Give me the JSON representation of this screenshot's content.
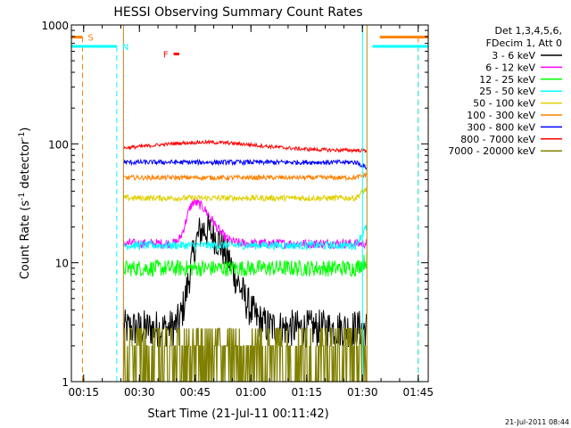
{
  "chart_data": {
    "type": "line",
    "title": "HESSI Observing Summary Count Rates",
    "xlabel": "Start Time (21-Jul-11 00:11:42)",
    "ylabel_main": "Count Rate (s",
    "ylabel_sup1": "-1",
    "ylabel_mid": " detector",
    "ylabel_sup2": "-1",
    "ylabel_end": ")",
    "x_unit": "minutes after 00:11:42",
    "xlim": [
      0,
      96
    ],
    "ylim": [
      1,
      1000
    ],
    "y_scale": "log",
    "x_ticks": [
      {
        "label": "00:15",
        "value": 3.3
      },
      {
        "label": "00:30",
        "value": 18.3
      },
      {
        "label": "00:45",
        "value": 33.3
      },
      {
        "label": "01:00",
        "value": 48.3
      },
      {
        "label": "01:15",
        "value": 63.3
      },
      {
        "label": "01:30",
        "value": 78.3
      },
      {
        "label": "01:45",
        "value": 93.3
      }
    ],
    "y_ticks": [
      {
        "label": "1",
        "value": 1
      },
      {
        "label": "10",
        "value": 10
      },
      {
        "label": "100",
        "value": 100
      },
      {
        "label": "1000",
        "value": 1000
      }
    ],
    "legend": {
      "position": "top-right",
      "header": [
        "Det 1,3,4,5,6,",
        "FDecim 1, Att 0"
      ],
      "entries": [
        {
          "label": "3 - 6 keV",
          "color": "#000000"
        },
        {
          "label": "6 - 12 keV",
          "color": "#ff00ff"
        },
        {
          "label": "12 - 25 keV",
          "color": "#00ff00"
        },
        {
          "label": "25 - 50 keV",
          "color": "#00ffff"
        },
        {
          "label": "50 - 100 keV",
          "color": "#e0d000"
        },
        {
          "label": "100 - 300 keV",
          "color": "#ff8000"
        },
        {
          "label": "300 - 800 keV",
          "color": "#0000ff"
        },
        {
          "label": "800 - 7000 keV",
          "color": "#ff0000"
        },
        {
          "label": "7000 - 20000 keV",
          "color": "#808000"
        }
      ]
    },
    "series": [
      {
        "name": "3 - 6 keV",
        "color": "#000000",
        "kind": "flare",
        "base": 2.8,
        "peak": 19,
        "peak_t": 35.5,
        "width": 3.5,
        "noise": 0.16
      },
      {
        "name": "6 - 12 keV",
        "color": "#ff00ff",
        "kind": "flare",
        "base": 14.5,
        "peak": 32,
        "peak_t": 33.0,
        "width": 2.5,
        "noise": 0.04
      },
      {
        "name": "12 - 25 keV",
        "color": "#00ff00",
        "kind": "flat",
        "base": 9.0,
        "noise": 0.07,
        "end_level": 10.5
      },
      {
        "name": "25 - 50 keV",
        "color": "#00ffff",
        "kind": "flat",
        "base": 14.0,
        "noise": 0.035,
        "end_level": 20
      },
      {
        "name": "50 - 100 keV",
        "color": "#e0d000",
        "kind": "flat",
        "base": 35.0,
        "noise": 0.025,
        "end_level": 42
      },
      {
        "name": "100 - 300 keV",
        "color": "#ff8000",
        "kind": "flat",
        "base": 52.0,
        "noise": 0.02,
        "end_level": 55
      },
      {
        "name": "300 - 800 keV",
        "color": "#0000ff",
        "kind": "flat",
        "base": 70.0,
        "noise": 0.02,
        "end_level": 63
      },
      {
        "name": "800 - 7000 keV",
        "color": "#ff0000",
        "kind": "hump",
        "base": 88.0,
        "peak": 103,
        "peak_t": 36,
        "noise": 0.015,
        "end_level": 88
      },
      {
        "name": "7000 - 20000 keV",
        "color": "#808000",
        "kind": "band",
        "base": 1.3,
        "noise": 0.25
      }
    ],
    "data_start": 14.0,
    "data_end": 79.5,
    "flags": [
      {
        "label": "S",
        "color": "#ff8000",
        "level": 790,
        "solid_spans": [
          [
            0,
            3.0
          ],
          [
            83.0,
            96
          ]
        ],
        "dashed_at": [
          3.0,
          93.3
        ]
      },
      {
        "label": "N",
        "color": "#00ffff",
        "level": 660,
        "solid_spans": [
          [
            0,
            12.2
          ],
          [
            81.0,
            96
          ]
        ],
        "dashed_at": [
          12.2,
          93.3
        ]
      },
      {
        "label": "F",
        "color": "#ff0000",
        "level": 570,
        "solid_spans": [
          [
            27.5,
            29.0
          ]
        ],
        "dashed_at": []
      }
    ],
    "vertical_lines": [
      {
        "t": 14.0,
        "color": "#b8860b"
      },
      {
        "t": 79.5,
        "color": "#b8860b"
      },
      {
        "t": 78.3,
        "color": "#00ffff"
      }
    ]
  },
  "footer_timestamp": "21-Jul-2011 08:44"
}
